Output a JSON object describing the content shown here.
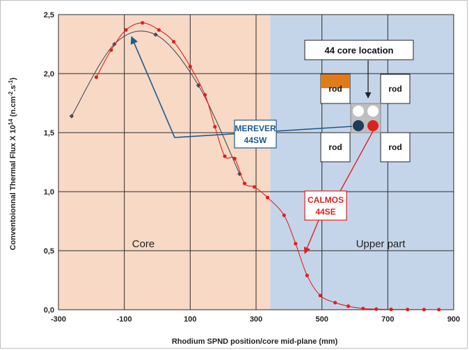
{
  "chart_data": {
    "type": "line",
    "title": "",
    "xlabel": "Rhodium SPND position/core mid-plane (mm)",
    "ylabel_main": "Conventoionnal Thermal Flux X 10",
    "ylabel_exp": "14",
    "ylabel_units_a": " (n.cm",
    "ylabel_units_exp1": "-2",
    "ylabel_units_b": ".s",
    "ylabel_units_exp2": "-1",
    "ylabel_units_c": ")",
    "xlim": [
      -300,
      900
    ],
    "ylim": [
      0,
      2.5
    ],
    "x_ticks": [
      "-300",
      "-100",
      "100",
      "300",
      "500",
      "700",
      "900"
    ],
    "x_tick_values": [
      -300,
      -100,
      100,
      300,
      500,
      700,
      900
    ],
    "y_ticks": [
      "0,0",
      "0,5",
      "1,0",
      "1,5",
      "2,0",
      "2,5"
    ],
    "y_tick_values": [
      0,
      0.5,
      1.0,
      1.5,
      2.0,
      2.5
    ],
    "grid": true,
    "regions": [
      {
        "label": "Core",
        "x_from": -300,
        "x_to": 343,
        "color": "#f7d9c6"
      },
      {
        "label": "Upper part",
        "x_from": 343,
        "x_to": 900,
        "color": "#c5d5e9"
      }
    ],
    "series": [
      {
        "name": "MEREVER 44SW",
        "color": "#4a4a55",
        "x": [
          -260,
          -130,
          -5,
          125,
          250
        ],
        "y": [
          1.64,
          2.25,
          2.33,
          1.9,
          1.15
        ]
      },
      {
        "name": "CALMOS 44SE",
        "color": "#e0201c",
        "x": [
          -185,
          -140,
          -95,
          -45,
          5,
          50,
          100,
          145,
          175,
          205,
          235,
          265,
          295,
          335,
          385,
          420,
          455,
          495,
          540,
          580,
          625,
          665,
          710,
          760,
          810,
          855
        ],
        "y": [
          1.97,
          2.2,
          2.37,
          2.43,
          2.37,
          2.27,
          2.06,
          1.82,
          1.55,
          1.3,
          1.28,
          1.07,
          1.04,
          0.95,
          0.8,
          0.56,
          0.29,
          0.12,
          0.06,
          0.03,
          0.01,
          0.005,
          0.003,
          0.002,
          0.001,
          0.001
        ]
      }
    ],
    "annotations": {
      "core_location_title": "44 core location",
      "rod_label": "rod",
      "merever_line1": "MEREVER",
      "merever_line2": "44SW",
      "calmos_line1": "CALMOS",
      "calmos_line2": "44SE"
    },
    "colors": {
      "merever": "#1f5a8c",
      "calmos": "#e0201c",
      "rod_orange": "#e07b1a",
      "channel_gray": "#bfbfbf",
      "dark_channel": "#1f3b5e"
    }
  }
}
